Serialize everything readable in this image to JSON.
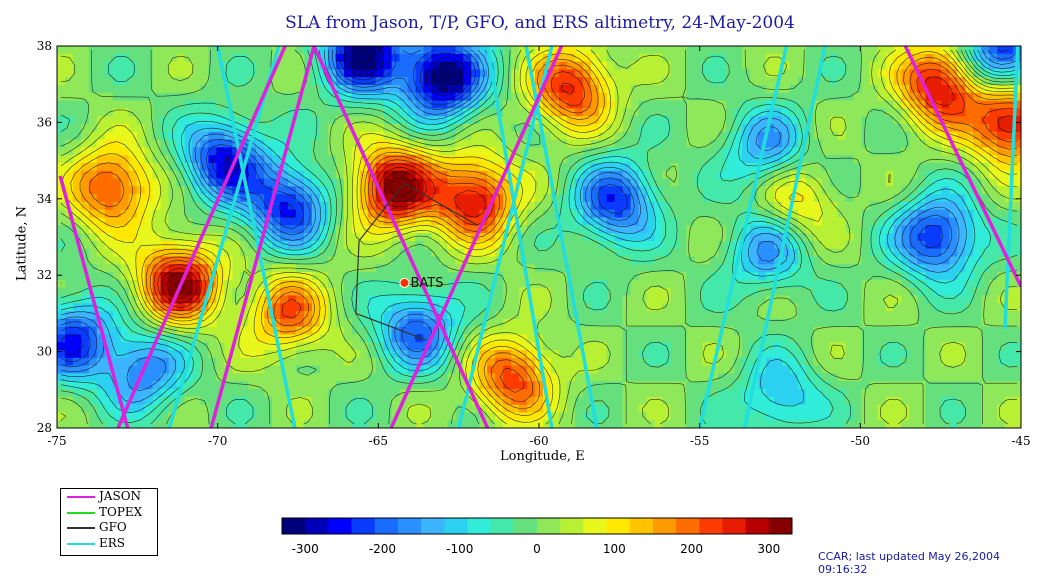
{
  "chart_data": {
    "type": "heatmap",
    "title": "SLA from Jason, T/P, GFO, and ERS altimetry, 24-May-2004",
    "xlabel": "Longitude, E",
    "ylabel": "Latitude, N",
    "xlim": [
      -75,
      -45
    ],
    "ylim": [
      28,
      38
    ],
    "x_ticks": [
      -75,
      -70,
      -65,
      -60,
      -55,
      -50,
      -45
    ],
    "y_ticks": [
      28,
      30,
      32,
      34,
      36,
      38
    ],
    "colorbar": {
      "range": [
        -330,
        330
      ],
      "ticks": [
        -300,
        -200,
        -100,
        0,
        100,
        200,
        300
      ],
      "colors": [
        "#00007a",
        "#0000b8",
        "#0000ff",
        "#0a3cff",
        "#1a6cff",
        "#2a90ff",
        "#3cb4ff",
        "#2cd0f0",
        "#30ecd8",
        "#44e8a8",
        "#66e07c",
        "#8ee85a",
        "#b8f034",
        "#e8f81c",
        "#ffe800",
        "#ffc400",
        "#ff9a00",
        "#ff6c00",
        "#ff3c00",
        "#e81c00",
        "#b80000",
        "#860000"
      ]
    },
    "eddies": [
      {
        "lon": -71.2,
        "lat": 31.8,
        "sla": 310
      },
      {
        "lon": -73.3,
        "lat": 34.3,
        "sla": 240
      },
      {
        "lon": -64.5,
        "lat": 34.3,
        "sla": 330
      },
      {
        "lon": -62.0,
        "lat": 34.0,
        "sla": 280
      },
      {
        "lon": -60.8,
        "lat": 29.3,
        "sla": 230
      },
      {
        "lon": -67.8,
        "lat": 31.0,
        "sla": 200
      },
      {
        "lon": -59.0,
        "lat": 36.9,
        "sla": 250
      },
      {
        "lon": -47.5,
        "lat": 37.0,
        "sla": 290
      },
      {
        "lon": -45.3,
        "lat": 36.0,
        "sla": 300
      },
      {
        "lon": -52.0,
        "lat": 34.0,
        "sla": 120
      },
      {
        "lon": -69.8,
        "lat": 35.0,
        "sla": -260
      },
      {
        "lon": -67.8,
        "lat": 33.8,
        "sla": -250
      },
      {
        "lon": -57.6,
        "lat": 33.9,
        "sla": -230
      },
      {
        "lon": -52.9,
        "lat": 35.3,
        "sla": -160
      },
      {
        "lon": -47.6,
        "lat": 33.0,
        "sla": -250
      },
      {
        "lon": -52.9,
        "lat": 32.6,
        "sla": -150
      },
      {
        "lon": -74.5,
        "lat": 30.3,
        "sla": -230
      },
      {
        "lon": -72.3,
        "lat": 29.5,
        "sla": -180
      },
      {
        "lon": -63.0,
        "lat": 37.2,
        "sla": -340
      },
      {
        "lon": -65.5,
        "lat": 37.8,
        "sla": -310
      },
      {
        "lon": -63.8,
        "lat": 30.6,
        "sla": -200
      },
      {
        "lon": -45.6,
        "lat": 37.8,
        "sla": -260
      },
      {
        "lon": -52.5,
        "lat": 28.8,
        "sla": -130
      }
    ],
    "tracks": {
      "JASON": [
        [
          [
            -74.9,
            34.6
          ],
          [
            -72.8,
            28.0
          ]
        ],
        [
          [
            -73.1,
            28.0
          ],
          [
            -67.9,
            38.0
          ]
        ],
        [
          [
            -70.2,
            28.0
          ],
          [
            -67.0,
            38.0
          ]
        ],
        [
          [
            -64.6,
            28.0
          ],
          [
            -59.3,
            38.0
          ]
        ],
        [
          [
            -61.6,
            28.0
          ],
          [
            -67.0,
            38.0
          ]
        ],
        [
          [
            -48.6,
            38.0
          ],
          [
            -45.0,
            31.7
          ]
        ]
      ],
      "ERS": [
        [
          [
            -71.5,
            28.0
          ],
          [
            -68.1,
            38.0
          ]
        ],
        [
          [
            -67.6,
            28.0
          ],
          [
            -70.0,
            38.0
          ]
        ],
        [
          [
            -62.5,
            28.0
          ],
          [
            -59.6,
            38.0
          ]
        ],
        [
          [
            -59.6,
            28.0
          ],
          [
            -61.6,
            38.0
          ]
        ],
        [
          [
            -58.2,
            28.0
          ],
          [
            -60.4,
            38.0
          ]
        ],
        [
          [
            -55.0,
            28.0
          ],
          [
            -52.3,
            38.0
          ]
        ],
        [
          [
            -53.6,
            28.0
          ],
          [
            -51.1,
            38.0
          ]
        ],
        [
          [
            -45.5,
            30.6
          ],
          [
            -45.1,
            38.0
          ]
        ]
      ],
      "GFO": [
        [
          [
            -64.2,
            34.4
          ],
          [
            -61.9,
            33.3
          ]
        ],
        [
          [
            -65.6,
            32.9
          ],
          [
            -64.2,
            34.4
          ]
        ],
        [
          [
            -65.6,
            32.9
          ],
          [
            -65.7,
            31.0
          ]
        ],
        [
          [
            -65.7,
            31.0
          ],
          [
            -63.5,
            30.3
          ]
        ]
      ],
      "TOPEX": []
    },
    "annotations": [
      {
        "text": "BATS",
        "lon": -64.0,
        "lat": 31.8,
        "marker": "red-dot"
      }
    ]
  },
  "legend": {
    "items": [
      {
        "label": "JASON",
        "color": "#dd22dd"
      },
      {
        "label": "TOPEX",
        "color": "#22dd22"
      },
      {
        "label": "GFO",
        "color": "#333333"
      },
      {
        "label": "ERS",
        "color": "#22dddd"
      }
    ]
  },
  "credit": "CCAR; last updated May 26,2004 09:16:32"
}
